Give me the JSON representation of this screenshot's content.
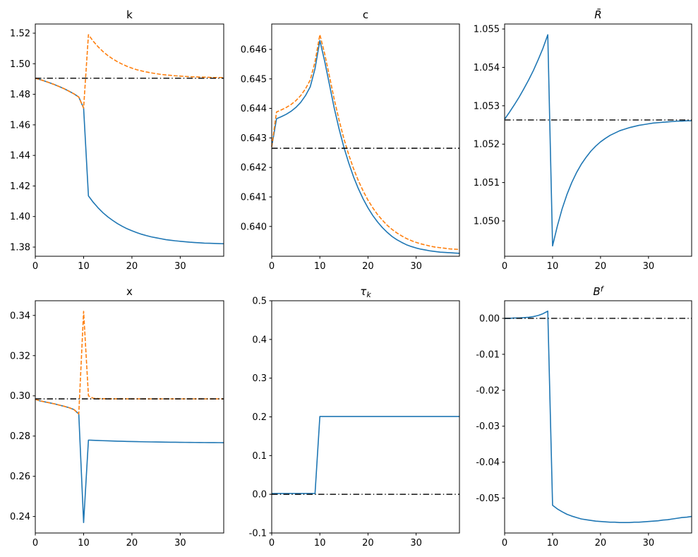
{
  "figure": {
    "background": "#ffffff"
  },
  "colors": {
    "line_primary": "#1f77b4",
    "line_secondary": "#ff7f0e",
    "steady_state": "#000000",
    "axes": "#000000"
  },
  "chart_data": [
    {
      "type": "line",
      "id": "k",
      "title": {
        "base": "k",
        "sub": "",
        "sup": ""
      },
      "xlim": [
        0,
        39
      ],
      "ylim": [
        1.374,
        1.526
      ],
      "xticks": [
        0,
        10,
        20,
        30
      ],
      "xtick_labels": [
        "0",
        "10",
        "20",
        "30"
      ],
      "yticks": [
        1.38,
        1.4,
        1.42,
        1.44,
        1.46,
        1.48,
        1.5,
        1.52
      ],
      "ytick_labels": [
        "1.38",
        "1.40",
        "1.42",
        "1.44",
        "1.46",
        "1.48",
        "1.50",
        "1.52"
      ],
      "steady_state": 1.4905,
      "x": [
        0,
        1,
        2,
        3,
        4,
        5,
        6,
        7,
        8,
        9,
        10,
        11,
        12,
        13,
        14,
        15,
        16,
        17,
        18,
        19,
        20,
        21,
        22,
        23,
        24,
        25,
        26,
        27,
        28,
        29,
        30,
        31,
        32,
        33,
        34,
        35,
        36,
        37,
        38,
        39
      ],
      "series": [
        {
          "name": "blue-solid",
          "color": "#1f77b4",
          "style": "solid",
          "values": [
            1.4905,
            1.4896,
            1.4886,
            1.4875,
            1.4863,
            1.485,
            1.4836,
            1.482,
            1.4803,
            1.4782,
            1.471,
            1.4135,
            1.4093,
            1.4057,
            1.4025,
            1.3998,
            1.3975,
            1.3954,
            1.3936,
            1.392,
            1.3907,
            1.3895,
            1.3884,
            1.3875,
            1.3867,
            1.3861,
            1.3855,
            1.3849,
            1.3845,
            1.3841,
            1.3838,
            1.3835,
            1.3832,
            1.383,
            1.3828,
            1.3826,
            1.3825,
            1.3824,
            1.3823,
            1.3822
          ]
        },
        {
          "name": "orange-dashed",
          "color": "#ff7f0e",
          "style": "dashed",
          "values": [
            1.4905,
            1.4896,
            1.4886,
            1.4875,
            1.4863,
            1.485,
            1.4836,
            1.482,
            1.4803,
            1.4782,
            1.471,
            1.519,
            1.5147,
            1.5111,
            1.508,
            1.5054,
            1.5032,
            1.5013,
            1.4997,
            1.4983,
            1.4971,
            1.4961,
            1.4953,
            1.4946,
            1.494,
            1.4935,
            1.493,
            1.4927,
            1.4924,
            1.4921,
            1.4919,
            1.4917,
            1.4915,
            1.4914,
            1.4913,
            1.4912,
            1.4911,
            1.491,
            1.491,
            1.4909
          ]
        }
      ]
    },
    {
      "type": "line",
      "id": "c",
      "title": {
        "base": "c",
        "sub": "",
        "sup": ""
      },
      "xlim": [
        0,
        39
      ],
      "ylim": [
        0.63899,
        0.64686
      ],
      "xticks": [
        0,
        10,
        20,
        30
      ],
      "xtick_labels": [
        "0",
        "10",
        "20",
        "30"
      ],
      "yticks": [
        0.64,
        0.641,
        0.642,
        0.643,
        0.644,
        0.645,
        0.646
      ],
      "ytick_labels": [
        "0.640",
        "0.641",
        "0.642",
        "0.643",
        "0.644",
        "0.645",
        "0.646"
      ],
      "steady_state": 0.64265,
      "x": [
        0,
        1,
        2,
        3,
        4,
        5,
        6,
        7,
        8,
        9,
        10,
        11,
        12,
        13,
        14,
        15,
        16,
        17,
        18,
        19,
        20,
        21,
        22,
        23,
        24,
        25,
        26,
        27,
        28,
        29,
        30,
        31,
        32,
        33,
        34,
        35,
        36,
        37,
        38,
        39
      ],
      "series": [
        {
          "name": "blue-solid",
          "color": "#1f77b4",
          "style": "solid",
          "values": [
            0.6427,
            0.64365,
            0.64372,
            0.6438,
            0.6439,
            0.64403,
            0.6442,
            0.64443,
            0.64473,
            0.64535,
            0.6463,
            0.6456,
            0.6448,
            0.644,
            0.6433,
            0.64268,
            0.64215,
            0.64168,
            0.64128,
            0.64093,
            0.64063,
            0.64037,
            0.64015,
            0.63996,
            0.6398,
            0.63966,
            0.63955,
            0.63946,
            0.63938,
            0.63932,
            0.63927,
            0.63923,
            0.6392,
            0.63917,
            0.63915,
            0.63913,
            0.63912,
            0.63911,
            0.6391,
            0.63909
          ]
        },
        {
          "name": "orange-dashed",
          "color": "#ff7f0e",
          "style": "dashed",
          "values": [
            0.6427,
            0.64388,
            0.64395,
            0.64403,
            0.64413,
            0.64426,
            0.64443,
            0.64466,
            0.64496,
            0.64558,
            0.6465,
            0.64585,
            0.64508,
            0.6443,
            0.6436,
            0.64297,
            0.64243,
            0.64196,
            0.64155,
            0.6412,
            0.64089,
            0.64063,
            0.6404,
            0.64021,
            0.64004,
            0.6399,
            0.63978,
            0.63968,
            0.63959,
            0.63952,
            0.63946,
            0.63941,
            0.63937,
            0.63933,
            0.6393,
            0.63928,
            0.63926,
            0.63924,
            0.63923,
            0.63922
          ]
        }
      ]
    },
    {
      "type": "line",
      "id": "rbar",
      "title": {
        "base": "R̄",
        "sub": "",
        "sup": ""
      },
      "xlim": [
        0,
        39
      ],
      "ylim": [
        1.04908,
        1.05513
      ],
      "xticks": [
        0,
        10,
        20,
        30
      ],
      "xtick_labels": [
        "0",
        "10",
        "20",
        "30"
      ],
      "yticks": [
        1.05,
        1.051,
        1.052,
        1.053,
        1.054,
        1.055
      ],
      "ytick_labels": [
        "1.050",
        "1.051",
        "1.052",
        "1.053",
        "1.054",
        "1.055"
      ],
      "steady_state": 1.05263,
      "x": [
        0,
        1,
        2,
        3,
        4,
        5,
        6,
        7,
        8,
        9,
        10,
        11,
        12,
        13,
        14,
        15,
        16,
        17,
        18,
        19,
        20,
        21,
        22,
        23,
        24,
        25,
        26,
        27,
        28,
        29,
        30,
        31,
        32,
        33,
        34,
        35,
        36,
        37,
        38,
        39
      ],
      "series": [
        {
          "name": "blue-solid",
          "color": "#1f77b4",
          "style": "solid",
          "values": [
            1.05265,
            1.05283,
            1.05302,
            1.05322,
            1.05344,
            1.05367,
            1.05392,
            1.0542,
            1.0545,
            1.05485,
            1.04935,
            1.04987,
            1.05032,
            1.05069,
            1.051,
            1.05126,
            1.05148,
            1.05166,
            1.05182,
            1.05195,
            1.05206,
            1.05215,
            1.05223,
            1.05229,
            1.05235,
            1.05239,
            1.05243,
            1.05246,
            1.05249,
            1.05251,
            1.05253,
            1.05255,
            1.05256,
            1.05257,
            1.05258,
            1.05259,
            1.0526,
            1.0526,
            1.05261,
            1.05261
          ]
        }
      ]
    },
    {
      "type": "line",
      "id": "x",
      "title": {
        "base": "x",
        "sub": "",
        "sup": ""
      },
      "xlim": [
        0,
        39
      ],
      "ylim": [
        0.2318,
        0.3473
      ],
      "xticks": [
        0,
        10,
        20,
        30
      ],
      "xtick_labels": [
        "0",
        "10",
        "20",
        "30"
      ],
      "yticks": [
        0.24,
        0.26,
        0.28,
        0.3,
        0.32,
        0.34
      ],
      "ytick_labels": [
        "0.24",
        "0.26",
        "0.28",
        "0.30",
        "0.32",
        "0.34"
      ],
      "steady_state": 0.2985,
      "x": [
        0,
        1,
        2,
        3,
        4,
        5,
        6,
        7,
        8,
        9,
        10,
        11,
        12,
        13,
        14,
        15,
        16,
        17,
        18,
        19,
        20,
        21,
        22,
        23,
        24,
        25,
        26,
        27,
        28,
        29,
        30,
        31,
        32,
        33,
        34,
        35,
        36,
        37,
        38,
        39
      ],
      "series": [
        {
          "name": "blue-solid",
          "color": "#1f77b4",
          "style": "solid",
          "values": [
            0.2983,
            0.2975,
            0.297,
            0.2965,
            0.296,
            0.2954,
            0.2948,
            0.2941,
            0.2932,
            0.291,
            0.237,
            0.278,
            0.2779,
            0.2778,
            0.2777,
            0.27762,
            0.27754,
            0.27747,
            0.2774,
            0.27734,
            0.27728,
            0.27723,
            0.27718,
            0.27713,
            0.27709,
            0.27705,
            0.27701,
            0.27698,
            0.27695,
            0.27692,
            0.27689,
            0.27687,
            0.27684,
            0.27682,
            0.2768,
            0.27678,
            0.27677,
            0.27675,
            0.27674,
            0.27672
          ]
        },
        {
          "name": "orange-dashed",
          "color": "#ff7f0e",
          "style": "dashed",
          "values": [
            0.2983,
            0.2975,
            0.297,
            0.2965,
            0.296,
            0.2954,
            0.2948,
            0.2941,
            0.2932,
            0.291,
            0.342,
            0.3,
            0.2988,
            0.29865,
            0.29858,
            0.29855,
            0.29853,
            0.29852,
            0.29851,
            0.29851,
            0.2985,
            0.2985,
            0.2985,
            0.2985,
            0.2985,
            0.2985,
            0.2985,
            0.2985,
            0.2985,
            0.2985,
            0.2985,
            0.2985,
            0.2985,
            0.2985,
            0.2985,
            0.2985,
            0.2985,
            0.2985,
            0.2985,
            0.2985
          ]
        }
      ]
    },
    {
      "type": "line",
      "id": "tauk",
      "title": {
        "base": "τ",
        "sub": "k",
        "sup": ""
      },
      "xlim": [
        0,
        39
      ],
      "ylim": [
        -0.1,
        0.5
      ],
      "xticks": [
        0,
        10,
        20,
        30
      ],
      "xtick_labels": [
        "0",
        "10",
        "20",
        "30"
      ],
      "yticks": [
        -0.1,
        0.0,
        0.1,
        0.2,
        0.3,
        0.4,
        0.5
      ],
      "ytick_labels": [
        "-0.1",
        "0.0",
        "0.1",
        "0.2",
        "0.3",
        "0.4",
        "0.5"
      ],
      "steady_state": 0.0,
      "x": [
        0,
        1,
        2,
        3,
        4,
        5,
        6,
        7,
        8,
        9,
        10,
        11,
        12,
        13,
        14,
        15,
        16,
        17,
        18,
        19,
        20,
        21,
        22,
        23,
        24,
        25,
        26,
        27,
        28,
        29,
        30,
        31,
        32,
        33,
        34,
        35,
        36,
        37,
        38,
        39
      ],
      "series": [
        {
          "name": "blue-solid",
          "color": "#1f77b4",
          "style": "solid",
          "values": [
            0.002,
            0.002,
            0.002,
            0.002,
            0.002,
            0.002,
            0.002,
            0.002,
            0.002,
            0.002,
            0.201,
            0.201,
            0.201,
            0.201,
            0.201,
            0.201,
            0.201,
            0.201,
            0.201,
            0.201,
            0.201,
            0.201,
            0.201,
            0.201,
            0.201,
            0.201,
            0.201,
            0.201,
            0.201,
            0.201,
            0.201,
            0.201,
            0.201,
            0.201,
            0.201,
            0.201,
            0.201,
            0.201,
            0.201,
            0.201
          ]
        }
      ]
    },
    {
      "type": "line",
      "id": "bf",
      "title": {
        "base": "B",
        "sub": "",
        "sup": "f"
      },
      "xlim": [
        0,
        39
      ],
      "ylim": [
        -0.0597,
        0.0049
      ],
      "xticks": [
        0,
        10,
        20,
        30
      ],
      "xtick_labels": [
        "0",
        "10",
        "20",
        "30"
      ],
      "yticks": [
        -0.05,
        -0.04,
        -0.03,
        -0.02,
        -0.01,
        0.0
      ],
      "ytick_labels": [
        "-0.05",
        "-0.04",
        "-0.03",
        "-0.02",
        "-0.01",
        "0.00"
      ],
      "steady_state": 0.0,
      "x": [
        0,
        1,
        2,
        3,
        4,
        5,
        6,
        7,
        8,
        9,
        10,
        11,
        12,
        13,
        14,
        15,
        16,
        17,
        18,
        19,
        20,
        21,
        22,
        23,
        24,
        25,
        26,
        27,
        28,
        29,
        30,
        31,
        32,
        33,
        34,
        35,
        36,
        37,
        38,
        39
      ],
      "series": [
        {
          "name": "blue-solid",
          "color": "#1f77b4",
          "style": "solid",
          "values": [
            0.0,
            0.0,
            0.0001,
            0.0001,
            0.0002,
            0.0003,
            0.0005,
            0.0008,
            0.0013,
            0.002,
            -0.052,
            -0.053,
            -0.0538,
            -0.0545,
            -0.055,
            -0.0554,
            -0.0558,
            -0.056,
            -0.0562,
            -0.0564,
            -0.0565,
            -0.0566,
            -0.0567,
            -0.0567,
            -0.0568,
            -0.0568,
            -0.0568,
            -0.0567,
            -0.0567,
            -0.0566,
            -0.0565,
            -0.0564,
            -0.0563,
            -0.0561,
            -0.056,
            -0.0558,
            -0.0556,
            -0.0554,
            -0.0553,
            -0.0551
          ]
        }
      ]
    }
  ]
}
